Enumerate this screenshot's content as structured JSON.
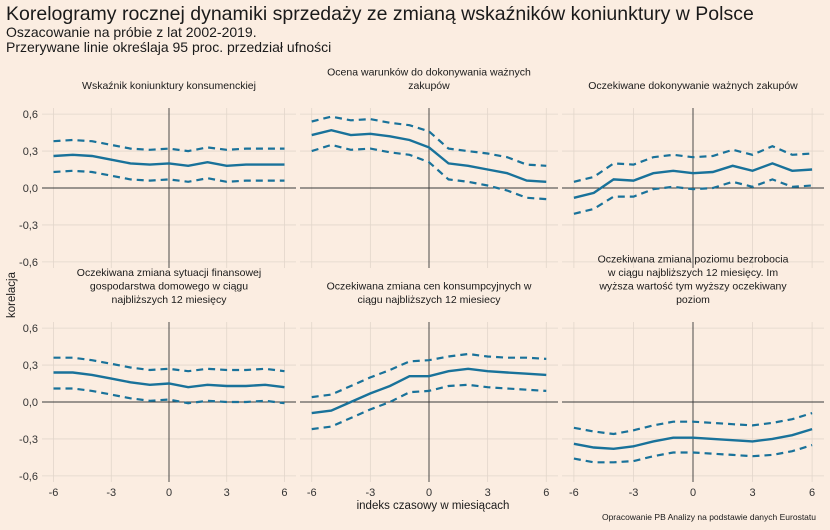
{
  "title": "Korelogramy rocznej dynamiki sprzedaży ze zmianą wskaźników koniunktury w Polsce",
  "subtitle_lines": [
    "Oszacowanie na próbie z lat 2002-2019.",
    "Przerywane linie określaja 95 proc. przedział ufności"
  ],
  "caption": "Opracowanie PB Analizy na podstawie danych Eurostatu",
  "chart_data": {
    "type": "line",
    "layout": "facet 2x3",
    "xlabel": "indeks czasowy w miesiącach",
    "ylabel": "korelacja",
    "xlim": [
      -6.6,
      6.6
    ],
    "ylim": [
      -0.65,
      0.65
    ],
    "xticks": [
      -6,
      -3,
      0,
      3,
      6
    ],
    "xtick_labels": [
      "-6",
      "-3",
      "0",
      "3",
      "6"
    ],
    "yticks": [
      -0.6,
      -0.3,
      0.0,
      0.3,
      0.6
    ],
    "ytick_labels": [
      "-0,6",
      "-0,3",
      "0,0",
      "0,3",
      "0,6"
    ],
    "grid": true,
    "line_color": "#19729a",
    "x": [
      -6,
      -5,
      -4,
      -3,
      -2,
      -1,
      0,
      1,
      2,
      3,
      4,
      5,
      6
    ],
    "panels": [
      {
        "title": "Wskaźnik koniunktury konsumenckiej",
        "title_lines": [
          "Wskaźnik koniunktury konsumenckiej"
        ],
        "correlation": [
          0.26,
          0.27,
          0.26,
          0.23,
          0.2,
          0.19,
          0.2,
          0.18,
          0.21,
          0.18,
          0.19,
          0.19,
          0.19
        ],
        "upper": [
          0.38,
          0.39,
          0.38,
          0.35,
          0.32,
          0.31,
          0.32,
          0.3,
          0.33,
          0.31,
          0.32,
          0.32,
          0.32
        ],
        "lower": [
          0.13,
          0.14,
          0.13,
          0.1,
          0.07,
          0.06,
          0.07,
          0.05,
          0.08,
          0.05,
          0.06,
          0.06,
          0.06
        ]
      },
      {
        "title": "Ocena warunków do dokonywania ważnych zakupów",
        "title_lines": [
          "Ocena warunków do dokonywania ważnych",
          "zakupów"
        ],
        "correlation": [
          0.43,
          0.47,
          0.43,
          0.44,
          0.42,
          0.39,
          0.33,
          0.2,
          0.18,
          0.15,
          0.12,
          0.06,
          0.05
        ],
        "upper": [
          0.54,
          0.58,
          0.55,
          0.56,
          0.53,
          0.51,
          0.46,
          0.32,
          0.3,
          0.28,
          0.25,
          0.19,
          0.18
        ],
        "lower": [
          0.3,
          0.35,
          0.31,
          0.32,
          0.29,
          0.27,
          0.21,
          0.07,
          0.05,
          0.02,
          -0.02,
          -0.08,
          -0.09
        ]
      },
      {
        "title": "Oczekiwane dokonywanie ważnych zakupów",
        "title_lines": [
          "Oczekiwane dokonywanie ważnych zakupów"
        ],
        "correlation": [
          -0.08,
          -0.04,
          0.07,
          0.06,
          0.12,
          0.14,
          0.12,
          0.13,
          0.18,
          0.14,
          0.2,
          0.14,
          0.15
        ],
        "upper": [
          0.05,
          0.09,
          0.2,
          0.19,
          0.25,
          0.27,
          0.25,
          0.26,
          0.31,
          0.27,
          0.34,
          0.27,
          0.28
        ],
        "lower": [
          -0.21,
          -0.17,
          -0.07,
          -0.07,
          -0.01,
          0.01,
          -0.01,
          0.0,
          0.05,
          0.01,
          0.07,
          0.01,
          0.02
        ]
      },
      {
        "title": "Oczekiwana zmiana sytuacji finansowej gospodarstwa domowego w ciągu najbliższych 12 miesięcy",
        "title_lines": [
          "Oczekiwana zmiana sytuacji finansowej",
          "gospodarstwa domowego w ciągu",
          "najbliższych 12 miesięcy"
        ],
        "correlation": [
          0.24,
          0.24,
          0.22,
          0.19,
          0.16,
          0.14,
          0.15,
          0.12,
          0.14,
          0.13,
          0.13,
          0.14,
          0.12
        ],
        "upper": [
          0.36,
          0.36,
          0.34,
          0.31,
          0.28,
          0.26,
          0.27,
          0.25,
          0.27,
          0.26,
          0.26,
          0.27,
          0.25
        ],
        "lower": [
          0.11,
          0.11,
          0.09,
          0.06,
          0.03,
          0.01,
          0.02,
          -0.01,
          0.01,
          0.0,
          0.0,
          0.01,
          -0.01
        ]
      },
      {
        "title": "Oczekiwana zmiana cen konsumpcyjnych w ciągu najbliższych 12 miesiecy",
        "title_lines": [
          "Oczekiwana zmiana cen konsumpcyjnych w",
          "ciągu najbliższych 12 miesiecy"
        ],
        "correlation": [
          -0.09,
          -0.07,
          0.0,
          0.07,
          0.13,
          0.21,
          0.21,
          0.25,
          0.27,
          0.25,
          0.24,
          0.23,
          0.22
        ],
        "upper": [
          0.04,
          0.06,
          0.13,
          0.2,
          0.26,
          0.33,
          0.34,
          0.37,
          0.39,
          0.37,
          0.36,
          0.36,
          0.35
        ],
        "lower": [
          -0.22,
          -0.2,
          -0.13,
          -0.06,
          0.0,
          0.08,
          0.09,
          0.13,
          0.14,
          0.12,
          0.11,
          0.1,
          0.09
        ]
      },
      {
        "title": "Oczekiwana zmiana poziomu bezrobocia w ciągu najbliższych 12 miesięcy. Im wyższa wartość tym wyższy oczekiwany poziom",
        "title_lines": [
          "Oczekiwana zmiana poziomu bezrobocia",
          "w ciągu najbliższych 12 miesięcy. Im",
          "wyższa wartość tym wyższy oczekiwany",
          "poziom"
        ],
        "correlation": [
          -0.34,
          -0.37,
          -0.38,
          -0.36,
          -0.32,
          -0.29,
          -0.29,
          -0.3,
          -0.31,
          -0.32,
          -0.3,
          -0.27,
          -0.22
        ],
        "upper": [
          -0.21,
          -0.24,
          -0.26,
          -0.23,
          -0.19,
          -0.16,
          -0.16,
          -0.17,
          -0.18,
          -0.19,
          -0.17,
          -0.14,
          -0.09
        ],
        "lower": [
          -0.46,
          -0.49,
          -0.49,
          -0.48,
          -0.44,
          -0.41,
          -0.41,
          -0.42,
          -0.43,
          -0.44,
          -0.43,
          -0.4,
          -0.35
        ]
      }
    ]
  }
}
